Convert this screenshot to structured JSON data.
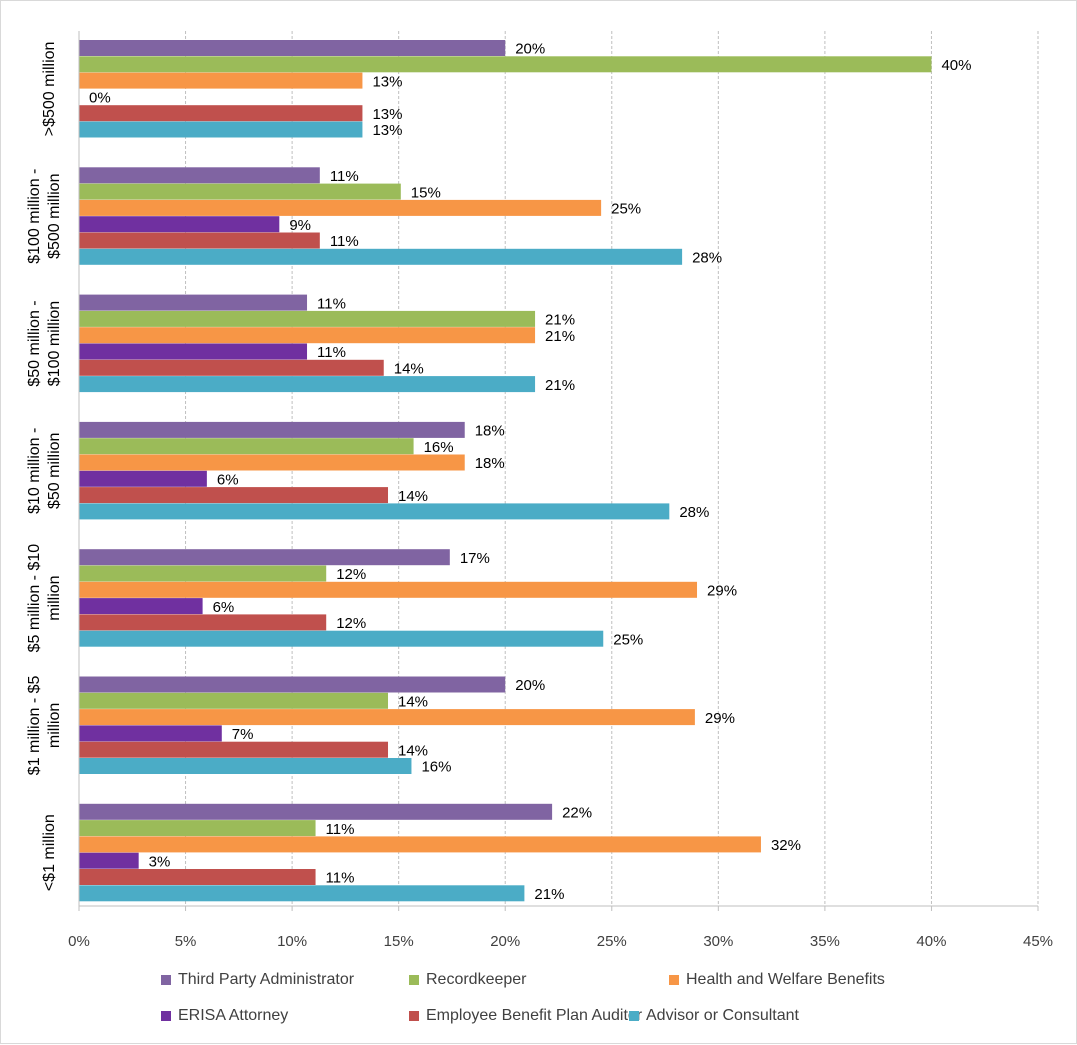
{
  "chart_data": {
    "type": "bar",
    "orientation": "horizontal",
    "title": "",
    "xlabel": "",
    "ylabel": "",
    "xlim": [
      0,
      45
    ],
    "x_ticks": [
      "0%",
      "5%",
      "10%",
      "15%",
      "20%",
      "25%",
      "30%",
      "35%",
      "40%",
      "45%"
    ],
    "grid": "vertical dashed gridlines",
    "legend_position": "bottom",
    "categories": [
      ">$500 million",
      "$100 million - $500 million",
      "$50 million - $100 million",
      "$10 million - $50 million",
      "$5 million - $10 million",
      "$1 million - $5 million",
      "<$1 million"
    ],
    "category_label_lines": [
      [
        ">$500 million"
      ],
      [
        "$100 million -",
        "$500 million"
      ],
      [
        "$50 million -",
        "$100 million"
      ],
      [
        "$10 million -",
        "$50 million"
      ],
      [
        "$5 million - $10",
        "million"
      ],
      [
        "$1 million - $5",
        "million"
      ],
      [
        "<$1 million"
      ]
    ],
    "series": [
      {
        "name": "Third Party Administrator",
        "color": "#8064a2",
        "values": [
          20,
          11.3,
          10.7,
          18.1,
          17.4,
          20,
          22.2
        ],
        "labels": [
          "20%",
          "11%",
          "11%",
          "18%",
          "17%",
          "20%",
          "22%"
        ]
      },
      {
        "name": "Recordkeeper",
        "color": "#9bbb59",
        "values": [
          40,
          15.1,
          21.4,
          15.7,
          11.6,
          14.5,
          11.1
        ],
        "labels": [
          "40%",
          "15%",
          "21%",
          "16%",
          "12%",
          "14%",
          "11%"
        ]
      },
      {
        "name": "Health and Welfare Benefits",
        "color": "#f79646",
        "values": [
          13.3,
          24.5,
          21.4,
          18.1,
          29,
          28.9,
          32
        ],
        "labels": [
          "13%",
          "25%",
          "21%",
          "18%",
          "29%",
          "29%",
          "32%"
        ]
      },
      {
        "name": "ERISA Attorney",
        "color": "#7030a0",
        "values": [
          0,
          9.4,
          10.7,
          6,
          5.8,
          6.7,
          2.8
        ],
        "labels": [
          "0%",
          "9%",
          "11%",
          "6%",
          "6%",
          "7%",
          "3%"
        ]
      },
      {
        "name": "Employee Benefit Plan Auditor",
        "color": "#c0504d",
        "values": [
          13.3,
          11.3,
          14.3,
          14.5,
          11.6,
          14.5,
          11.1
        ],
        "labels": [
          "13%",
          "11%",
          "14%",
          "14%",
          "12%",
          "14%",
          "11%"
        ]
      },
      {
        "name": "Advisor or Consultant",
        "color": "#4bacc6",
        "values": [
          13.3,
          28.3,
          21.4,
          27.7,
          24.6,
          15.6,
          20.9
        ],
        "labels": [
          "13%",
          "28%",
          "21%",
          "28%",
          "25%",
          "16%",
          "21%"
        ]
      }
    ]
  }
}
